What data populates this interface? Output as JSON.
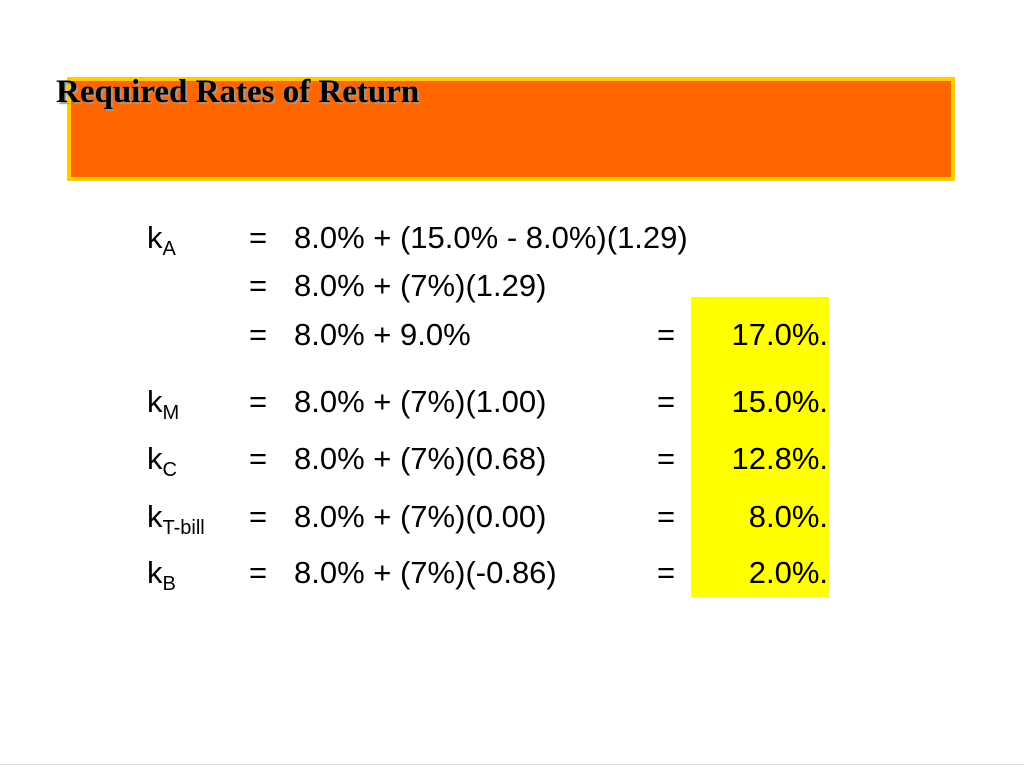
{
  "slide": {
    "title": "Required Rates of Return",
    "colors": {
      "title_box_fill": "#ff6600",
      "title_box_border": "#ffcc00",
      "result_highlight": "#ffff00"
    },
    "rows": [
      {
        "label": "k",
        "subscript": "A",
        "eq": "=",
        "expr": "8.0% + (15.0% - 8.0%)(1.29)",
        "eq2": "",
        "result": ""
      },
      {
        "label": "",
        "subscript": "",
        "eq": "=",
        "expr": "8.0% + (7%)(1.29)",
        "eq2": "",
        "result": ""
      },
      {
        "label": "",
        "subscript": "",
        "eq": "=",
        "expr": "8.0% + 9.0%",
        "eq2": "=",
        "result": "17.0%."
      },
      {
        "label": "k",
        "subscript": "M",
        "eq": "=",
        "expr": "8.0% + (7%)(1.00)",
        "eq2": "=",
        "result": "15.0%."
      },
      {
        "label": "k",
        "subscript": "C",
        "eq": "=",
        "expr": "8.0% + (7%)(0.68)",
        "eq2": "=",
        "result": "12.8%."
      },
      {
        "label": "k",
        "subscript": "T-bill",
        "eq": "=",
        "expr": "8.0% + (7%)(0.00)",
        "eq2": "=",
        "result": "8.0%."
      },
      {
        "label": "k",
        "subscript": "B",
        "eq": "=",
        "expr": "8.0% + (7%)(-0.86)",
        "eq2": "=",
        "result": "2.0%."
      }
    ]
  }
}
